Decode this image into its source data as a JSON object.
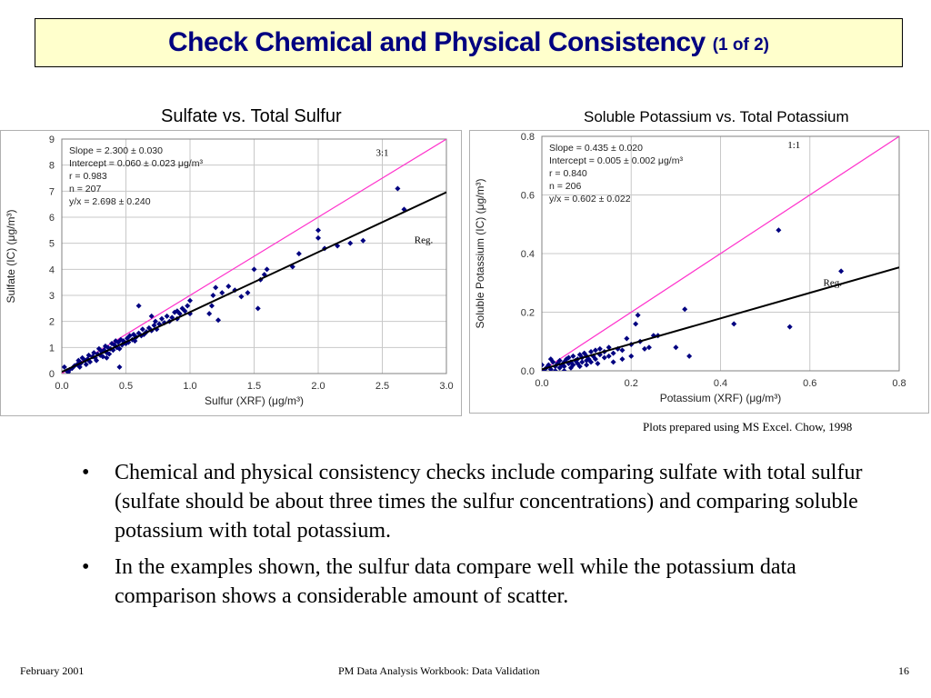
{
  "slide": {
    "title": "Check Chemical and Physical Consistency",
    "title_suffix": "(1 of 2)",
    "note": "Plots prepared using MS Excel.  Chow, 1998",
    "bullets": [
      "Chemical and physical consistency checks include comparing sulfate with total sulfur (sulfate should be about three times the sulfur concentrations) and comparing soluble potassium with total potassium.",
      "In the examples shown, the sulfur data compare well while the potassium data comparison shows a considerable amount of scatter."
    ],
    "bullet_symbol": "•",
    "footer": {
      "left": "February 2001",
      "center": "PM Data Analysis Workbook:  Data Validation",
      "right": "16"
    },
    "colors": {
      "title_text": "#000080",
      "title_box": "#ffffcc",
      "one_to_one_line": "#ff33cc",
      "regression_line": "#000000",
      "points": "#000080"
    }
  },
  "chart_data": [
    {
      "type": "scatter",
      "title": "Sulfate vs. Total Sulfur",
      "xlabel": "Sulfur (XRF) (μg/m³)",
      "ylabel": "Sulfate (IC) (μg/m³)",
      "xlim": [
        0.0,
        3.0
      ],
      "ylim": [
        0,
        9
      ],
      "xticks": [
        "0.0",
        "0.5",
        "1.0",
        "1.5",
        "2.0",
        "2.5",
        "3.0"
      ],
      "yticks": [
        "0",
        "1",
        "2",
        "3",
        "4",
        "5",
        "6",
        "7",
        "8",
        "9"
      ],
      "grid": true,
      "stats": [
        "Slope = 2.300 ± 0.030",
        "Intercept = 0.060 ± 0.023 μg/m³",
        "r = 0.983",
        "n = 207",
        "y/x = 2.698 ± 0.240"
      ],
      "annotations": [
        {
          "text": "3:1",
          "x": 2.45,
          "y": 8.35
        },
        {
          "text": "Reg.",
          "x": 2.75,
          "y": 5.0
        }
      ],
      "ref_line": {
        "slope": 3.0,
        "intercept": 0.0
      },
      "reg_line": {
        "slope": 2.3,
        "intercept": 0.06
      },
      "points": [
        [
          0.02,
          0.25
        ],
        [
          0.04,
          0.1
        ],
        [
          0.06,
          0.15
        ],
        [
          0.08,
          0.2
        ],
        [
          0.1,
          0.3
        ],
        [
          0.12,
          0.35
        ],
        [
          0.13,
          0.5
        ],
        [
          0.15,
          0.4
        ],
        [
          0.16,
          0.6
        ],
        [
          0.18,
          0.5
        ],
        [
          0.2,
          0.55
        ],
        [
          0.21,
          0.7
        ],
        [
          0.22,
          0.45
        ],
        [
          0.24,
          0.65
        ],
        [
          0.25,
          0.8
        ],
        [
          0.26,
          0.6
        ],
        [
          0.28,
          0.75
        ],
        [
          0.29,
          0.95
        ],
        [
          0.3,
          0.7
        ],
        [
          0.31,
          0.85
        ],
        [
          0.32,
          0.65
        ],
        [
          0.33,
          0.9
        ],
        [
          0.34,
          1.05
        ],
        [
          0.35,
          0.8
        ],
        [
          0.36,
          1.0
        ],
        [
          0.37,
          0.75
        ],
        [
          0.38,
          0.95
        ],
        [
          0.39,
          1.15
        ],
        [
          0.4,
          0.9
        ],
        [
          0.41,
          1.1
        ],
        [
          0.42,
          1.25
        ],
        [
          0.43,
          1.0
        ],
        [
          0.44,
          1.2
        ],
        [
          0.45,
          0.95
        ],
        [
          0.46,
          1.3
        ],
        [
          0.47,
          1.1
        ],
        [
          0.48,
          1.25
        ],
        [
          0.5,
          1.15
        ],
        [
          0.51,
          1.35
        ],
        [
          0.52,
          1.2
        ],
        [
          0.53,
          1.45
        ],
        [
          0.55,
          1.3
        ],
        [
          0.56,
          1.5
        ],
        [
          0.57,
          1.25
        ],
        [
          0.58,
          1.4
        ],
        [
          0.6,
          1.55
        ],
        [
          0.62,
          1.45
        ],
        [
          0.63,
          1.7
        ],
        [
          0.64,
          1.5
        ],
        [
          0.66,
          1.6
        ],
        [
          0.68,
          1.75
        ],
        [
          0.7,
          1.65
        ],
        [
          0.72,
          1.85
        ],
        [
          0.73,
          2.0
        ],
        [
          0.74,
          1.7
        ],
        [
          0.76,
          1.9
        ],
        [
          0.78,
          2.1
        ],
        [
          0.8,
          1.95
        ],
        [
          0.82,
          2.2
        ],
        [
          0.84,
          2.0
        ],
        [
          0.86,
          2.15
        ],
        [
          0.88,
          2.35
        ],
        [
          0.9,
          2.1
        ],
        [
          0.92,
          2.3
        ],
        [
          0.94,
          2.5
        ],
        [
          0.96,
          2.4
        ],
        [
          0.98,
          2.6
        ],
        [
          1.0,
          2.8
        ],
        [
          1.0,
          2.3
        ],
        [
          0.6,
          2.6
        ],
        [
          0.45,
          0.25
        ],
        [
          0.7,
          2.2
        ],
        [
          1.15,
          2.3
        ],
        [
          1.17,
          2.6
        ],
        [
          1.18,
          3.0
        ],
        [
          1.2,
          3.3
        ],
        [
          1.22,
          2.05
        ],
        [
          1.25,
          3.1
        ],
        [
          1.3,
          3.35
        ],
        [
          1.35,
          3.2
        ],
        [
          1.4,
          2.95
        ],
        [
          1.45,
          3.1
        ],
        [
          1.5,
          4.0
        ],
        [
          1.53,
          2.5
        ],
        [
          1.55,
          3.6
        ],
        [
          1.58,
          3.8
        ],
        [
          1.6,
          4.0
        ],
        [
          1.8,
          4.1
        ],
        [
          1.85,
          4.6
        ],
        [
          2.0,
          5.2
        ],
        [
          2.0,
          5.5
        ],
        [
          2.05,
          4.8
        ],
        [
          2.15,
          4.9
        ],
        [
          2.25,
          5.0
        ],
        [
          2.35,
          5.1
        ],
        [
          2.62,
          7.1
        ],
        [
          2.67,
          6.3
        ],
        [
          0.05,
          0.05
        ],
        [
          0.14,
          0.25
        ],
        [
          0.19,
          0.35
        ],
        [
          0.27,
          0.5
        ],
        [
          0.35,
          0.6
        ],
        [
          0.65,
          1.55
        ],
        [
          0.9,
          2.4
        ]
      ]
    },
    {
      "type": "scatter",
      "title": "Soluble Potassium vs. Total Potassium",
      "xlabel": "Potassium (XRF) (μg/m³)",
      "ylabel": "Soluble Potassium (IC) (μg/m³)",
      "xlim": [
        0.0,
        0.8
      ],
      "ylim": [
        0.0,
        0.8
      ],
      "xticks": [
        "0.0",
        "0.2",
        "0.4",
        "0.6",
        "0.8"
      ],
      "yticks": [
        "0.0",
        "0.2",
        "0.4",
        "0.6",
        "0.8"
      ],
      "grid": true,
      "stats": [
        "Slope = 0.435 ± 0.020",
        "Intercept = 0.005 ± 0.002 μg/m³",
        "r = 0.840",
        "n = 206",
        "y/x = 0.602 ± 0.022"
      ],
      "annotations": [
        {
          "text": "1:1",
          "x": 0.55,
          "y": 0.76
        },
        {
          "text": "Reg.",
          "x": 0.63,
          "y": 0.29
        }
      ],
      "ref_line": {
        "slope": 1.0,
        "intercept": 0.0
      },
      "reg_line": {
        "slope": 0.435,
        "intercept": 0.005
      },
      "points": [
        [
          0.0,
          0.02
        ],
        [
          0.01,
          0.01
        ],
        [
          0.015,
          0.02
        ],
        [
          0.02,
          0.005
        ],
        [
          0.025,
          0.03
        ],
        [
          0.03,
          0.015
        ],
        [
          0.035,
          0.025
        ],
        [
          0.04,
          0.01
        ],
        [
          0.04,
          0.035
        ],
        [
          0.045,
          0.02
        ],
        [
          0.05,
          0.03
        ],
        [
          0.05,
          0.015
        ],
        [
          0.055,
          0.04
        ],
        [
          0.06,
          0.025
        ],
        [
          0.06,
          0.045
        ],
        [
          0.065,
          0.03
        ],
        [
          0.07,
          0.02
        ],
        [
          0.07,
          0.05
        ],
        [
          0.075,
          0.035
        ],
        [
          0.08,
          0.04
        ],
        [
          0.08,
          0.025
        ],
        [
          0.085,
          0.055
        ],
        [
          0.09,
          0.03
        ],
        [
          0.09,
          0.045
        ],
        [
          0.095,
          0.06
        ],
        [
          0.1,
          0.035
        ],
        [
          0.1,
          0.05
        ],
        [
          0.105,
          0.04
        ],
        [
          0.11,
          0.065
        ],
        [
          0.11,
          0.03
        ],
        [
          0.115,
          0.05
        ],
        [
          0.12,
          0.07
        ],
        [
          0.12,
          0.04
        ],
        [
          0.13,
          0.055
        ],
        [
          0.13,
          0.075
        ],
        [
          0.14,
          0.045
        ],
        [
          0.14,
          0.065
        ],
        [
          0.15,
          0.08
        ],
        [
          0.15,
          0.05
        ],
        [
          0.16,
          0.06
        ],
        [
          0.17,
          0.075
        ],
        [
          0.18,
          0.07
        ],
        [
          0.19,
          0.11
        ],
        [
          0.2,
          0.09
        ],
        [
          0.21,
          0.16
        ],
        [
          0.215,
          0.19
        ],
        [
          0.22,
          0.1
        ],
        [
          0.24,
          0.08
        ],
        [
          0.25,
          0.12
        ],
        [
          0.3,
          0.08
        ],
        [
          0.32,
          0.21
        ],
        [
          0.33,
          0.05
        ],
        [
          0.43,
          0.16
        ],
        [
          0.53,
          0.48
        ],
        [
          0.555,
          0.15
        ],
        [
          0.67,
          0.34
        ],
        [
          0.005,
          0.0
        ],
        [
          0.02,
          0.04
        ],
        [
          0.03,
          0.0
        ],
        [
          0.05,
          0.0
        ],
        [
          0.065,
          0.01
        ],
        [
          0.085,
          0.015
        ],
        [
          0.1,
          0.02
        ],
        [
          0.125,
          0.025
        ],
        [
          0.16,
          0.03
        ],
        [
          0.18,
          0.04
        ],
        [
          0.2,
          0.05
        ],
        [
          0.23,
          0.075
        ],
        [
          0.26,
          0.12
        ]
      ]
    }
  ]
}
